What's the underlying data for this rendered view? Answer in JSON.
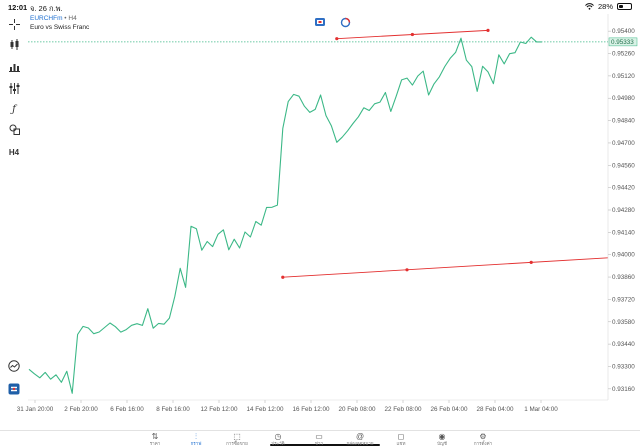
{
  "status": {
    "time": "12:01",
    "date": "จ. 26 ก.พ.",
    "battery": "28%",
    "battery_level": 0.28
  },
  "toolbar": {
    "timeframe_label": "H4"
  },
  "chart_header": {
    "symbol": "EURCHFm",
    "separator": " • ",
    "timeframe": "H4",
    "description": "Euro vs Swiss Franc"
  },
  "chart_data": {
    "type": "line",
    "x_ticks": [
      "31 Jan 20:00",
      "2 Feb 20:00",
      "6 Feb 16:00",
      "8 Feb 16:00",
      "12 Feb 12:00",
      "14 Feb 12:00",
      "16 Feb 12:00",
      "20 Feb 08:00",
      "22 Feb 08:00",
      "26 Feb 04:00",
      "28 Feb 04:00",
      "1 Mar 04:00"
    ],
    "y_ticks": [
      "0.95400",
      "0.95260",
      "0.95120",
      "0.94980",
      "0.94840",
      "0.94700",
      "0.94560",
      "0.94420",
      "0.94280",
      "0.94140",
      "0.94000",
      "0.93860",
      "0.93720",
      "0.93580",
      "0.93440",
      "0.93300",
      "0.93160"
    ],
    "ylim": [
      0.9309,
      0.9547
    ],
    "current_price": "0.95333",
    "current_price_value": 0.95333,
    "series": [
      {
        "values": [
          0.93282,
          0.93254,
          0.93229,
          0.93263,
          0.9322,
          0.93248,
          0.93201,
          0.9327,
          0.93132,
          0.935,
          0.93551,
          0.93541,
          0.93505,
          0.93516,
          0.93544,
          0.93572,
          0.93549,
          0.93515,
          0.93531,
          0.93558,
          0.93568,
          0.93557,
          0.93662,
          0.9354,
          0.9357,
          0.93565,
          0.93603,
          0.93738,
          0.93915,
          0.93795,
          0.94178,
          0.94163,
          0.94028,
          0.94083,
          0.94051,
          0.94128,
          0.94156,
          0.94031,
          0.94097,
          0.94042,
          0.94142,
          0.94111,
          0.94208,
          0.94185,
          0.94296,
          0.94297,
          0.94311,
          0.94791,
          0.94959,
          0.95004,
          0.94993,
          0.9493,
          0.94891,
          0.9491,
          0.95,
          0.94871,
          0.94807,
          0.94704,
          0.94736,
          0.94776,
          0.94822,
          0.94864,
          0.9492,
          0.94903,
          0.94945,
          0.94956,
          0.95016,
          0.94897,
          0.94993,
          0.95095,
          0.95106,
          0.95062,
          0.95119,
          0.9515,
          0.95,
          0.9507,
          0.95114,
          0.95179,
          0.9523,
          0.95267,
          0.95356,
          0.95218,
          0.95178,
          0.95023,
          0.9518,
          0.95145,
          0.95071,
          0.95252,
          0.95195,
          0.95259,
          0.95265,
          0.95332,
          0.95323,
          0.95362,
          0.95333,
          0.95333
        ]
      }
    ],
    "trendlines": [
      {
        "x": [
          57,
          85
        ],
        "y": [
          0.95353,
          0.95405
        ]
      },
      {
        "x": [
          47,
          93
        ],
        "y": [
          0.93859,
          0.93952
        ]
      }
    ]
  },
  "tabs": [
    {
      "icon": "⇅",
      "label": "ราคา",
      "name": "tab-quotes"
    },
    {
      "icon": "⫶",
      "label": "กราฟ",
      "name": "tab-chart"
    },
    {
      "icon": "⬚",
      "label": "การซื้อขาย",
      "name": "tab-trade"
    },
    {
      "icon": "◷",
      "label": "ประวัติ",
      "name": "tab-history"
    },
    {
      "icon": "▭",
      "label": "ข่าว",
      "name": "tab-news"
    },
    {
      "icon": "@",
      "label": "กล่องจดหมาย",
      "name": "tab-mailbox"
    },
    {
      "icon": "◻",
      "label": "แชท",
      "name": "tab-chat"
    },
    {
      "icon": "◉",
      "label": "บัญชี",
      "name": "tab-account"
    },
    {
      "icon": "⚙",
      "label": "การตั้งค่า",
      "name": "tab-settings"
    }
  ],
  "active_tab": "tab-chart",
  "colors": {
    "line": "#3cb887",
    "trendline": "#e33030",
    "accent": "#1d6fd1",
    "price_label_bg": "#d9f2e6",
    "grid": "#e6e6e6"
  }
}
